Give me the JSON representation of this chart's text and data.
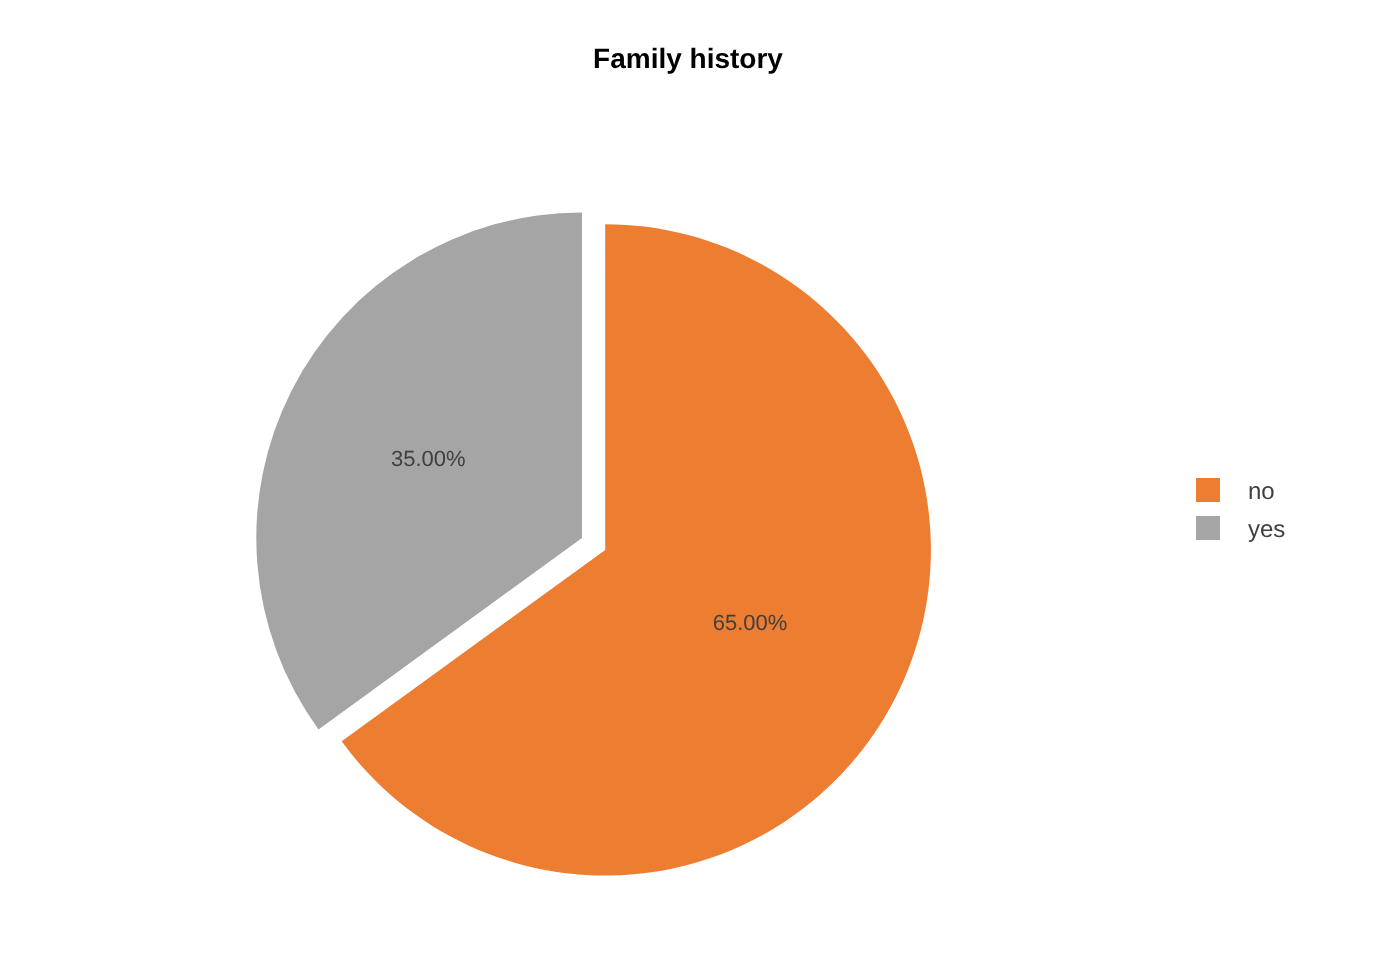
{
  "chart_data": {
    "type": "pie",
    "title": "Family history",
    "categories": [
      "no",
      "yes"
    ],
    "values": [
      65,
      35
    ],
    "colors": [
      "#ed7d31",
      "#a5a5a5"
    ],
    "value_labels": [
      "65.00%",
      "35.00%"
    ],
    "legend": "right"
  }
}
